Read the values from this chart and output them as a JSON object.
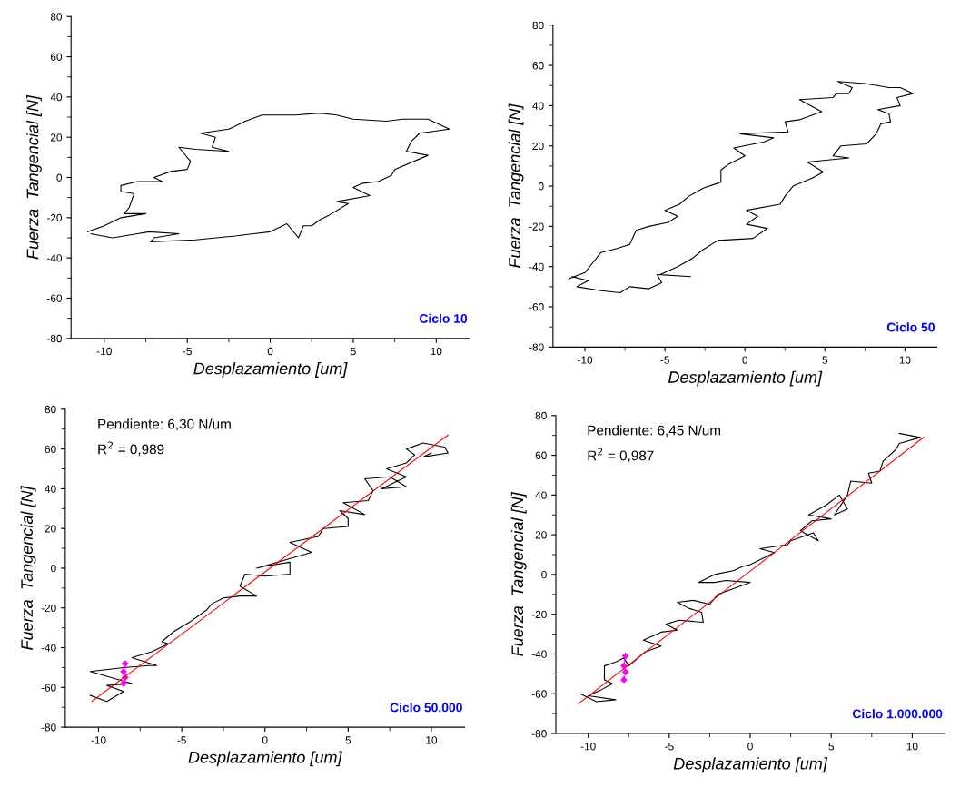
{
  "chart_data": [
    {
      "type": "line",
      "xlabel": "Desplazamiento [um]",
      "ylabel": "Fuerza  Tangencial [N]",
      "xlim": [
        -12,
        12
      ],
      "xticks": [
        -10,
        -5,
        0,
        5,
        10
      ],
      "ylim": [
        -80,
        80
      ],
      "yticks": [
        -80,
        -60,
        -40,
        -20,
        0,
        20,
        40,
        60,
        80
      ],
      "annotations": [
        "Ciclo 10"
      ],
      "series": [
        {
          "color": "#000000",
          "x": [
            -11,
            -10,
            -9,
            -7.5,
            -8.8,
            -8.5,
            -8.2,
            -9,
            -9,
            -8,
            -6.5,
            -7,
            -6,
            -5,
            -4.8,
            -5.5,
            -4.5,
            -2.5,
            -3.5,
            -3.3,
            -4.2,
            -2.5,
            -1.5,
            -0.5,
            1.5,
            3,
            4,
            5,
            7,
            8,
            9.5,
            10.8,
            9,
            8.5,
            8.2,
            9.5,
            7.5,
            7.3,
            6.5,
            5.5,
            5,
            6,
            4,
            4.7,
            3.5,
            3,
            2.5,
            2,
            1.7,
            1,
            0,
            -1,
            -2,
            -4.5,
            -7.2,
            -7,
            -5.5,
            -7.3,
            -8,
            -9.5,
            -10.8
          ],
          "values": [
            -27,
            -24,
            -20,
            -18,
            -18,
            -15,
            -8,
            -7,
            -4,
            -2,
            -2,
            0,
            3,
            4,
            8,
            15,
            14,
            13,
            15,
            20,
            22,
            24,
            28,
            31,
            31,
            32,
            31,
            29,
            28,
            29,
            29,
            24,
            22,
            18,
            13,
            11,
            4,
            1,
            -2,
            -3,
            -5,
            -9,
            -12,
            -13,
            -19,
            -21,
            -24,
            -24,
            -30,
            -23,
            -27,
            -28,
            -29,
            -31,
            -32,
            -30,
            -28,
            -27,
            -28,
            -30,
            -28
          ]
        }
      ]
    },
    {
      "type": "line",
      "xlabel": "Desplazamiento [um]",
      "ylabel": "Fuerza  Tangencial [N]",
      "xlim": [
        -12,
        12
      ],
      "xticks": [
        -10,
        -5,
        0,
        5,
        10
      ],
      "ylim": [
        -80,
        80
      ],
      "yticks": [
        -80,
        -60,
        -40,
        -20,
        0,
        20,
        40,
        60,
        80
      ],
      "annotations": [
        "Ciclo 50"
      ],
      "series": [
        {
          "color": "#000000",
          "x": [
            -11,
            -10,
            -9.5,
            -9,
            -8,
            -7.2,
            -6.8,
            -6,
            -4.8,
            -4.2,
            -5,
            -4.1,
            -3.5,
            -2.6,
            -1.5,
            -1.5,
            -1,
            0,
            -0.7,
            1.2,
            1.8,
            -0.3,
            2.7,
            2.5,
            3.4,
            4.8,
            3.4,
            5.5,
            5.7,
            6.5,
            6.7,
            5.8,
            7.5,
            9,
            9.7,
            10.5,
            9.5,
            9.7,
            8.3,
            9,
            9.1,
            8.5,
            8.2,
            7.6,
            6,
            5.5,
            6.5,
            3.9,
            4.9,
            4.2,
            3,
            2.5,
            2.2,
            0.1,
            0.8,
            0.1,
            1.4,
            0.5,
            -1.7,
            -2.7,
            -3.3,
            -4.2,
            -5.3,
            -3.4,
            -5.5,
            -5.2,
            -6,
            -7.2,
            -7.8,
            -9,
            -10.5,
            -9.8,
            -10.8
          ],
          "values": [
            -46,
            -43,
            -38,
            -33,
            -31,
            -29,
            -22,
            -20,
            -18,
            -15,
            -12,
            -9,
            -5,
            -1,
            2,
            8,
            11,
            15,
            19,
            22,
            24,
            26,
            27,
            32,
            33,
            37,
            43,
            44,
            46,
            46,
            49,
            52,
            51,
            49,
            49,
            46,
            44,
            40,
            38,
            36,
            32,
            31,
            26,
            21,
            20,
            15,
            14,
            12,
            7,
            4,
            0,
            -5,
            -9,
            -12,
            -15,
            -19,
            -21,
            -26,
            -27,
            -32,
            -36,
            -40,
            -44,
            -45,
            -44,
            -48,
            -51,
            -50,
            -53,
            -52,
            -50,
            -47,
            -45
          ]
        }
      ]
    },
    {
      "type": "line",
      "xlabel": "Desplazamiento [um]",
      "ylabel": "Fuerza  Tangencial [N]",
      "xlim": [
        -12,
        12
      ],
      "xticks": [
        -10,
        -5,
        0,
        5,
        10
      ],
      "ylim": [
        -80,
        80
      ],
      "yticks": [
        -80,
        -60,
        -40,
        -20,
        0,
        20,
        40,
        60,
        80
      ],
      "annotations": [
        "Pendiente: 6,30 N/um",
        "R$^{2}$ = 0,989",
        "Ciclo 50.000"
      ],
      "series": [
        {
          "color": "#000000",
          "x": [
            -10.5,
            -9.5,
            -8.5,
            -9.5,
            -8,
            -10.5,
            -8.5,
            -7,
            -6.5,
            -8,
            -6.8,
            -5.8,
            -6.2,
            -5.5,
            -4.5,
            -4,
            -3.5,
            -3.2,
            -2.5,
            -1.5,
            -0.5,
            -1.5,
            -1.2,
            0,
            1.5,
            1.5,
            0,
            -0.5,
            2,
            2.8,
            1.5,
            3.2,
            3.5,
            5,
            5,
            4.5,
            6,
            4.7,
            6.2,
            6.5,
            6,
            7.5,
            8.5,
            7,
            8.5,
            7.3,
            8.5,
            9,
            8.5,
            9.5,
            10.8,
            11,
            9.5,
            10
          ],
          "values": [
            -64,
            -67,
            -62,
            -59,
            -58,
            -52,
            -50,
            -49,
            -49,
            -45,
            -42,
            -38,
            -37,
            -32,
            -27,
            -24,
            -21,
            -18,
            -15,
            -14,
            -14,
            -9,
            -3,
            -4,
            -3,
            3,
            1,
            0,
            6,
            8,
            13,
            16,
            20,
            21,
            25,
            29,
            27,
            33,
            34,
            39,
            45,
            46,
            41,
            40,
            46,
            50,
            53,
            57,
            60,
            63,
            61,
            58,
            56,
            58
          ]
        },
        {
          "color": "#ff00ff",
          "marker": "diamond",
          "x": [
            -8.4,
            -8.5,
            -8.4,
            -8.5
          ],
          "values": [
            -48,
            -52,
            -55,
            -58
          ]
        },
        {
          "color": "#ff0000",
          "x": [
            -10.4,
            11
          ],
          "values": [
            -67,
            67
          ]
        }
      ]
    },
    {
      "type": "line",
      "xlabel": "Desplazamiento [um]",
      "ylabel": "Fuerza  Tangencial [N]",
      "xlim": [
        -12,
        12
      ],
      "xticks": [
        -10,
        -5,
        0,
        5,
        10
      ],
      "ylim": [
        -80,
        80
      ],
      "yticks": [
        -80,
        -60,
        -40,
        -20,
        0,
        20,
        40,
        60,
        80
      ],
      "annotations": [
        "Pendiente: 6,45 N/um",
        "R$^{2}$ = 0,987",
        "Ciclo 1.000.000"
      ],
      "series": [
        {
          "color": "#000000",
          "x": [
            -10.5,
            -9.5,
            -8.3,
            -10,
            -9.2,
            -8.5,
            -9,
            -9,
            -8.3,
            -7.8,
            -7.5,
            -6.5,
            -5.5,
            -6.6,
            -5.5,
            -4.5,
            -5.2,
            -4.4,
            -2.9,
            -3,
            -3.8,
            -4.5,
            -3.5,
            -2.5,
            -2,
            -1,
            0,
            -1.5,
            -2.2,
            -3.2,
            -2.2,
            -1,
            -0.5,
            0,
            1.5,
            0.6,
            2.3,
            2.5,
            3.9,
            4.2,
            3.1,
            3.8,
            5,
            3.6,
            4.7,
            5.5,
            6,
            5.2,
            6,
            6.2,
            7.5,
            7.3,
            8,
            8.2,
            9,
            9.2,
            10.5,
            9.2
          ],
          "values": [
            -60,
            -64,
            -63,
            -61,
            -58,
            -55,
            -53,
            -46,
            -44,
            -42,
            -46,
            -39,
            -36,
            -33,
            -29,
            -28,
            -25,
            -23,
            -24,
            -19,
            -17,
            -14,
            -13,
            -15,
            -10,
            -7,
            -4,
            -3,
            -4,
            -4,
            0,
            2,
            4,
            5,
            11,
            13,
            15,
            17,
            21,
            17,
            22,
            27,
            28,
            30,
            35,
            40,
            33,
            30,
            40,
            47,
            46,
            51,
            52,
            57,
            63,
            66,
            69,
            71
          ]
        },
        {
          "color": "#ff00ff",
          "marker": "diamond",
          "x": [
            -7.7,
            -7.8,
            -7.7,
            -7.8
          ],
          "values": [
            -41,
            -46,
            -49,
            -53
          ]
        },
        {
          "color": "#ff0000",
          "x": [
            -10.6,
            10.7
          ],
          "values": [
            -65,
            69
          ]
        }
      ]
    }
  ]
}
